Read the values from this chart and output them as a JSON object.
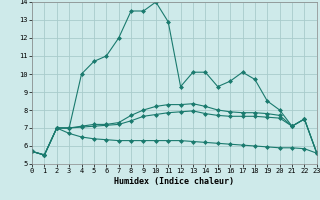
{
  "xlabel": "Humidex (Indice chaleur)",
  "x": [
    0,
    1,
    2,
    3,
    4,
    5,
    6,
    7,
    8,
    9,
    10,
    11,
    12,
    13,
    14,
    15,
    16,
    17,
    18,
    19,
    20,
    21,
    22,
    23
  ],
  "line1": [
    5.7,
    5.5,
    7.0,
    7.0,
    10.0,
    10.7,
    11.0,
    12.0,
    13.5,
    13.5,
    14.0,
    12.9,
    9.3,
    10.1,
    10.1,
    9.3,
    9.6,
    10.1,
    9.7,
    8.5,
    8.0,
    7.1,
    7.5,
    5.6
  ],
  "line2": [
    5.7,
    5.5,
    7.0,
    7.0,
    7.1,
    7.2,
    7.2,
    7.3,
    7.7,
    8.0,
    8.2,
    8.3,
    8.3,
    8.35,
    8.2,
    8.0,
    7.9,
    7.85,
    7.85,
    7.8,
    7.7,
    7.1,
    7.5,
    5.6
  ],
  "line3": [
    5.7,
    5.5,
    7.0,
    7.0,
    7.05,
    7.1,
    7.15,
    7.2,
    7.4,
    7.65,
    7.75,
    7.85,
    7.9,
    7.95,
    7.8,
    7.7,
    7.65,
    7.65,
    7.65,
    7.6,
    7.55,
    7.1,
    7.5,
    5.6
  ],
  "line4": [
    5.7,
    5.5,
    7.0,
    6.7,
    6.5,
    6.4,
    6.35,
    6.3,
    6.3,
    6.3,
    6.3,
    6.3,
    6.3,
    6.25,
    6.2,
    6.15,
    6.1,
    6.05,
    6.0,
    5.95,
    5.9,
    5.9,
    5.85,
    5.6
  ],
  "line_color": "#1a7a6e",
  "bg_color": "#ceeaea",
  "grid_color": "#a8cccc",
  "ylim": [
    5,
    14
  ],
  "xlim": [
    0,
    23
  ]
}
